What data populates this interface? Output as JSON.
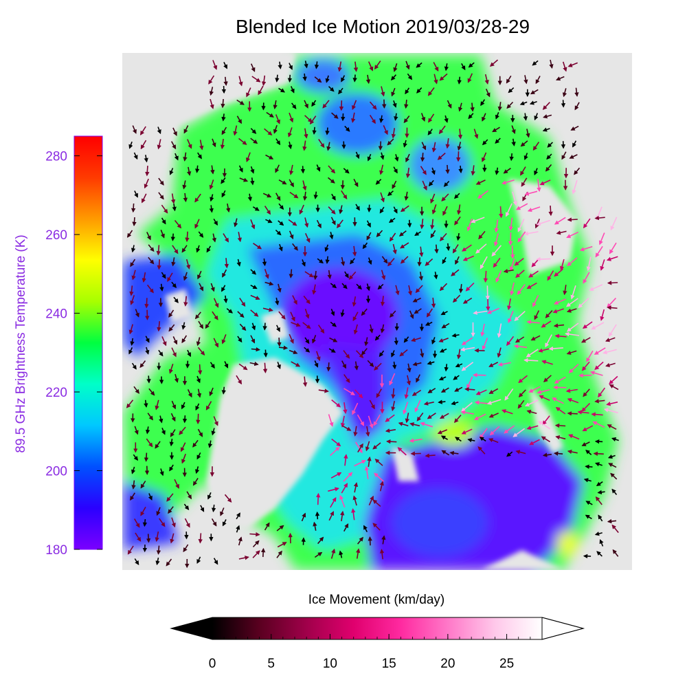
{
  "title": "Blended Ice Motion  2019/03/28-29",
  "left_colorbar": {
    "label": "89.5 GHz Brightness Temperature (K)",
    "label_color": "#8a2be2",
    "ticks": [
      "180",
      "200",
      "220",
      "240",
      "260",
      "280"
    ],
    "range": [
      180,
      285
    ],
    "colors": [
      "#7a00ff",
      "#2a00ff",
      "#0050ff",
      "#00c8ff",
      "#00ffc8",
      "#00ff40",
      "#a8ff00",
      "#ffff00",
      "#ff9a00",
      "#ff3a00",
      "#ff0000"
    ]
  },
  "bottom_colorbar": {
    "label": "Ice Movement (km/day)",
    "ticks": [
      "0",
      "5",
      "10",
      "15",
      "20",
      "25"
    ],
    "range": [
      0,
      28
    ],
    "colors": [
      "#000000",
      "#5a0020",
      "#a0004a",
      "#e0006e",
      "#ff2aa0",
      "#ff78c8",
      "#ffc8ea",
      "#ffffff"
    ]
  },
  "map": {
    "land_color": "#e6e6e6",
    "arrow_colors": [
      "#000000",
      "#3a0014",
      "#7a0030",
      "#c8006a",
      "#ff4ab4",
      "#ffb4e6"
    ]
  }
}
